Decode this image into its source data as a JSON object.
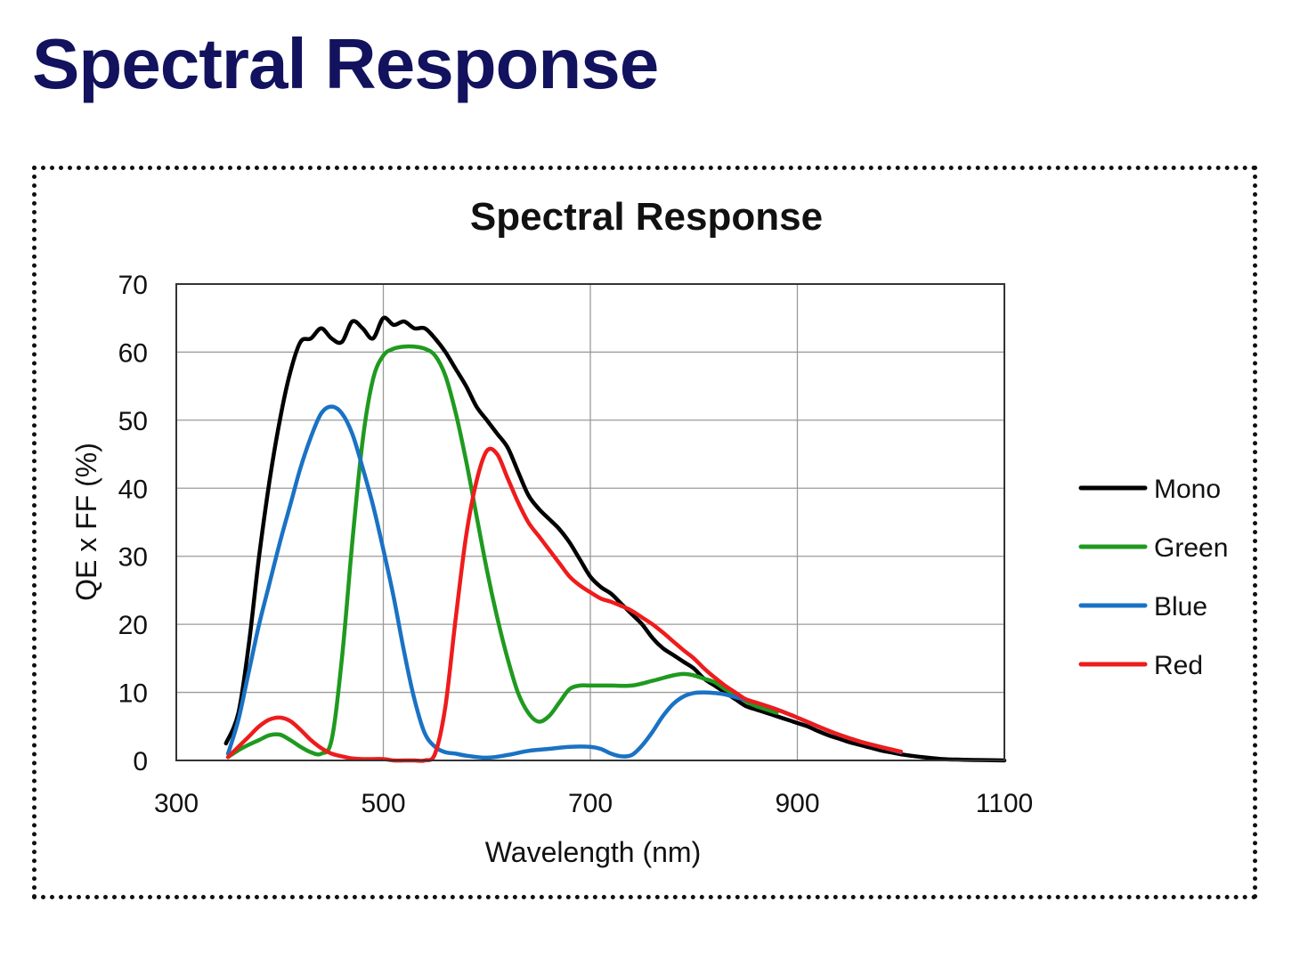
{
  "page": {
    "heading": "Spectral Response"
  },
  "chart_data": {
    "type": "line",
    "title": "Spectral Response",
    "xlabel": "Wavelength (nm)",
    "ylabel": "QE x FF (%)",
    "xlim": [
      300,
      1100
    ],
    "ylim": [
      0,
      70
    ],
    "xticks": [
      300,
      500,
      700,
      900,
      1100
    ],
    "yticks": [
      0,
      10,
      20,
      30,
      40,
      50,
      60,
      70
    ],
    "grid": true,
    "legend_position": "right",
    "series": [
      {
        "name": "Mono",
        "color": "#000000",
        "x": [
          348,
          360,
          370,
          380,
          390,
          400,
          410,
          420,
          430,
          440,
          450,
          460,
          470,
          480,
          490,
          500,
          510,
          520,
          530,
          540,
          550,
          560,
          570,
          580,
          590,
          600,
          610,
          620,
          630,
          640,
          650,
          660,
          670,
          680,
          690,
          700,
          710,
          720,
          730,
          740,
          750,
          760,
          770,
          780,
          790,
          800,
          810,
          820,
          830,
          840,
          850,
          860,
          870,
          880,
          890,
          900,
          910,
          920,
          930,
          940,
          950,
          960,
          970,
          980,
          990,
          1000,
          1020,
          1040,
          1060,
          1080,
          1100
        ],
        "y": [
          2.5,
          7,
          17,
          30,
          41,
          50,
          57,
          61.5,
          62,
          63.5,
          62,
          61.5,
          64.5,
          63.5,
          62,
          65,
          64,
          64.5,
          63.5,
          63.5,
          62,
          60,
          57.5,
          55,
          52,
          50,
          48,
          46,
          42.5,
          39,
          37,
          35.5,
          34,
          32,
          29.5,
          27,
          25.5,
          24.5,
          23,
          21.5,
          20,
          18,
          16.5,
          15.5,
          14.5,
          13.5,
          12,
          11,
          10,
          9,
          8,
          7.5,
          7,
          6.5,
          6,
          5.5,
          5,
          4.3,
          3.7,
          3.2,
          2.7,
          2.3,
          1.9,
          1.5,
          1.2,
          0.9,
          0.5,
          0.2,
          0.1,
          0.05,
          0
        ]
      },
      {
        "name": "Green",
        "color": "#1f9a1f",
        "x": [
          350,
          360,
          370,
          380,
          390,
          400,
          410,
          420,
          430,
          440,
          450,
          460,
          470,
          480,
          490,
          500,
          510,
          520,
          530,
          540,
          550,
          560,
          570,
          580,
          590,
          600,
          610,
          620,
          630,
          640,
          650,
          660,
          670,
          680,
          690,
          700,
          720,
          740,
          760,
          780,
          790,
          800,
          810,
          820,
          830,
          840,
          850,
          860,
          870,
          880
        ],
        "y": [
          0.5,
          1.5,
          2.3,
          3,
          3.7,
          3.8,
          3,
          2,
          1.2,
          1,
          3,
          15,
          32,
          47,
          56,
          59.5,
          60.5,
          60.8,
          60.8,
          60.5,
          59.5,
          56.5,
          51,
          44,
          36,
          28,
          21,
          15,
          10,
          7,
          5.7,
          6.5,
          8.5,
          10.5,
          11,
          11,
          11,
          11,
          11.7,
          12.5,
          12.7,
          12.5,
          12,
          11.5,
          10.5,
          9.7,
          8.7,
          8,
          7.5,
          7
        ]
      },
      {
        "name": "Blue",
        "color": "#1a72c4",
        "x": [
          350,
          360,
          370,
          380,
          390,
          400,
          410,
          420,
          430,
          440,
          450,
          460,
          470,
          480,
          490,
          500,
          510,
          520,
          530,
          540,
          550,
          560,
          570,
          580,
          600,
          620,
          640,
          660,
          680,
          700,
          710,
          720,
          730,
          740,
          750,
          760,
          770,
          780,
          790,
          800,
          810,
          820,
          830,
          840,
          850,
          860,
          880,
          900,
          920,
          940,
          960,
          980,
          1000
        ],
        "y": [
          1,
          6,
          13,
          20,
          26,
          32,
          37.5,
          43,
          47.5,
          51,
          52,
          51,
          48,
          43,
          37.5,
          31,
          24,
          16,
          9,
          4,
          2,
          1.2,
          1,
          0.7,
          0.4,
          0.8,
          1.4,
          1.7,
          2,
          2,
          1.7,
          1,
          0.6,
          0.8,
          2.2,
          4.2,
          6.5,
          8.3,
          9.4,
          9.9,
          10,
          9.9,
          9.7,
          9.3,
          8.9,
          8.5,
          7.5,
          6.3,
          5,
          3.8,
          2.8,
          2,
          1.2
        ]
      },
      {
        "name": "Red",
        "color": "#ee1c1c",
        "x": [
          350,
          360,
          370,
          380,
          390,
          400,
          410,
          420,
          430,
          440,
          450,
          460,
          470,
          480,
          490,
          500,
          510,
          520,
          530,
          540,
          550,
          560,
          570,
          580,
          590,
          600,
          610,
          620,
          630,
          640,
          650,
          660,
          670,
          680,
          690,
          700,
          710,
          720,
          730,
          740,
          750,
          760,
          770,
          780,
          790,
          800,
          810,
          820,
          830,
          840,
          850,
          860,
          880,
          900,
          920,
          940,
          960,
          980,
          1000
        ],
        "y": [
          0.5,
          2,
          3.5,
          5,
          6,
          6.3,
          5.8,
          4.5,
          3,
          1.8,
          1,
          0.6,
          0.3,
          0.2,
          0.2,
          0.2,
          0,
          0,
          0,
          0,
          1,
          8,
          21,
          33,
          41,
          45.5,
          45,
          41.5,
          38,
          35,
          33,
          31,
          29,
          27,
          25.7,
          24.7,
          23.8,
          23.3,
          22.7,
          22,
          21,
          20,
          18.8,
          17.5,
          16.2,
          15,
          13.5,
          12.2,
          11,
          10,
          9,
          8.5,
          7.5,
          6.3,
          5,
          3.8,
          2.8,
          2,
          1.3
        ]
      }
    ]
  }
}
